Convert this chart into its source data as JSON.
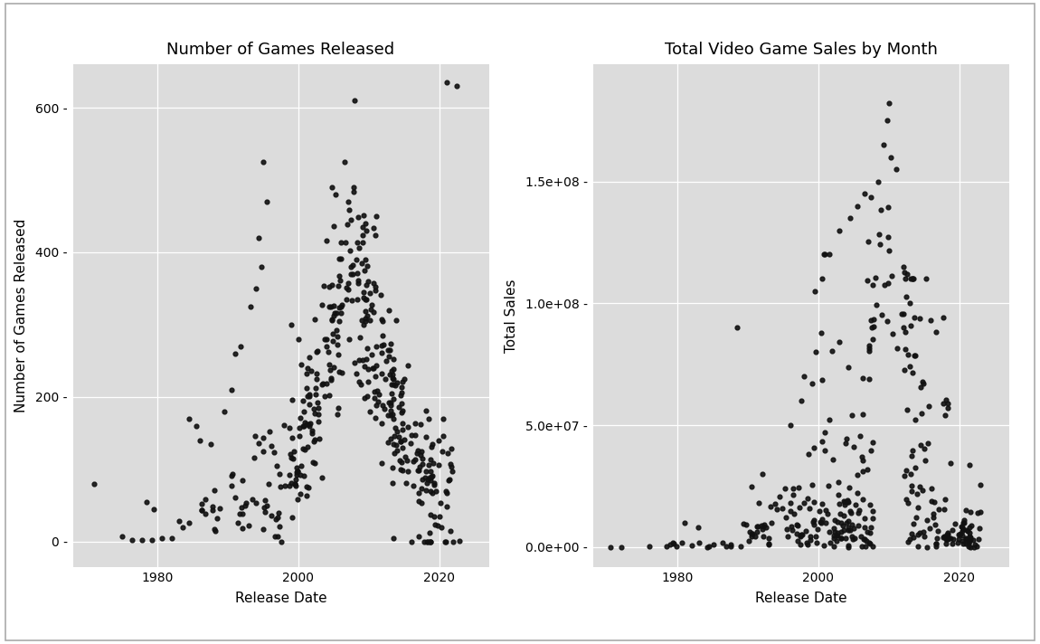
{
  "title1": "Number of Games Released",
  "title2": "Total Video Game Sales by Month",
  "xlabel": "Release Date",
  "ylabel1": "Number of Games Released",
  "ylabel2": "Total Sales",
  "bg_color": "#DCDCDC",
  "fig_bg_color": "#F0F0F0",
  "outer_bg": "#FFFFFF",
  "point_color": "#111111",
  "point_size": 12,
  "point_alpha": 0.9,
  "xlim": [
    1968,
    2027
  ],
  "ylim1": [
    -35,
    660
  ],
  "ylim2": [
    -8000000.0,
    198000000.0
  ],
  "yticks1": [
    0,
    200,
    400,
    600
  ],
  "yticks2": [
    0.0,
    50000000.0,
    100000000.0,
    150000000.0
  ],
  "xticks": [
    1980,
    2000,
    2020
  ],
  "title_fontsize": 13,
  "axis_label_fontsize": 11,
  "tick_fontsize": 10,
  "seed": 12345
}
